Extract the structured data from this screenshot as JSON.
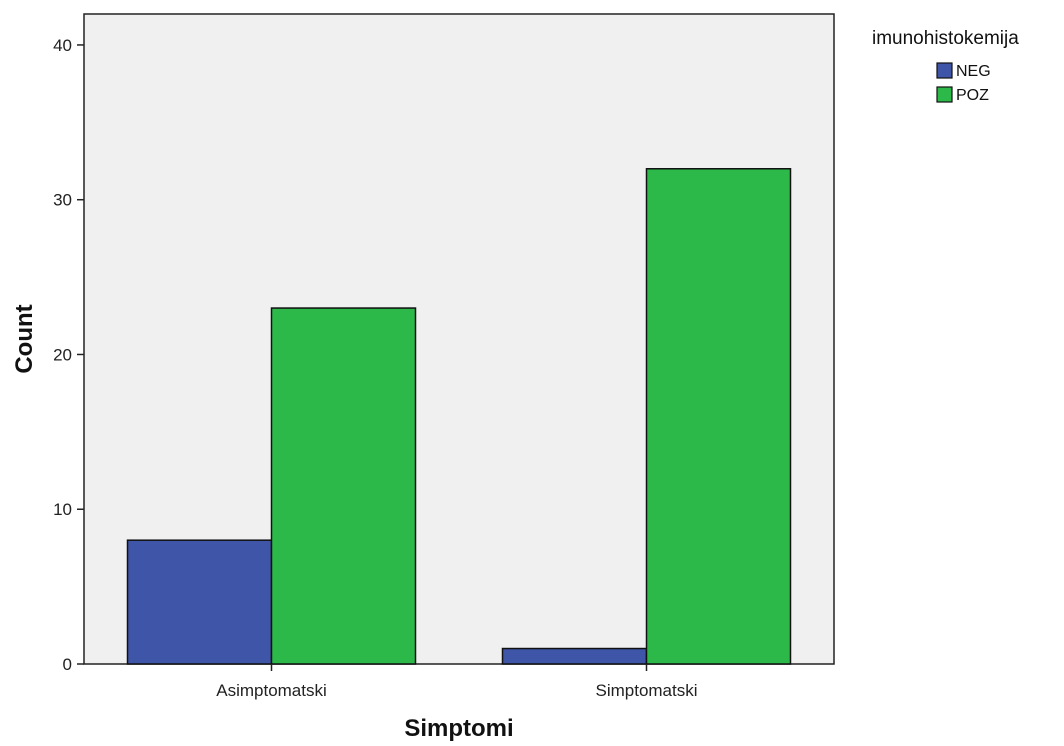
{
  "chart_data": {
    "type": "bar",
    "title": "",
    "xlabel": "Simptomi",
    "ylabel": "Count",
    "categories": [
      "Asimptomatski",
      "Simptomatski"
    ],
    "series": [
      {
        "name": "NEG",
        "values": [
          8,
          1
        ],
        "color": "#3f55a8"
      },
      {
        "name": "POZ",
        "values": [
          23,
          32
        ],
        "color": "#2db84a"
      }
    ],
    "ylim": [
      0,
      42
    ],
    "yticks": [
      0,
      10,
      20,
      30,
      40
    ],
    "legend": {
      "title": "imunohistokemija",
      "position": "top-right"
    },
    "grid": false,
    "plot_background": "#f0f0f0"
  }
}
